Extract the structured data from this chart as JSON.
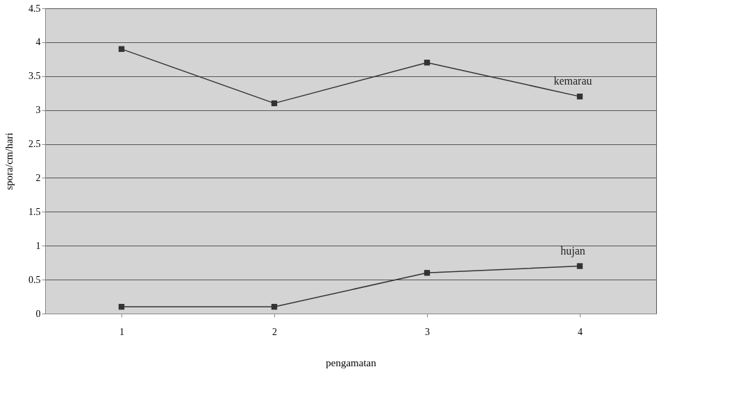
{
  "chart_data": {
    "type": "line",
    "xlabel": "pengamatan",
    "ylabel": "spora/cm/hari",
    "categories": [
      "1",
      "2",
      "3",
      "4"
    ],
    "series": [
      {
        "name": "kemarau",
        "color": "#333333",
        "values": [
          3.9,
          3.1,
          3.7,
          3.2
        ]
      },
      {
        "name": "hujan",
        "color": "#333333",
        "values": [
          0.1,
          0.1,
          0.6,
          0.7
        ]
      }
    ],
    "ylim": [
      0,
      4.5
    ],
    "yticks": [
      0,
      0.5,
      1,
      1.5,
      2,
      2.5,
      3,
      3.5,
      4,
      4.5
    ],
    "grid": "y",
    "marker": "square",
    "line_style": "solid",
    "legend": false
  }
}
